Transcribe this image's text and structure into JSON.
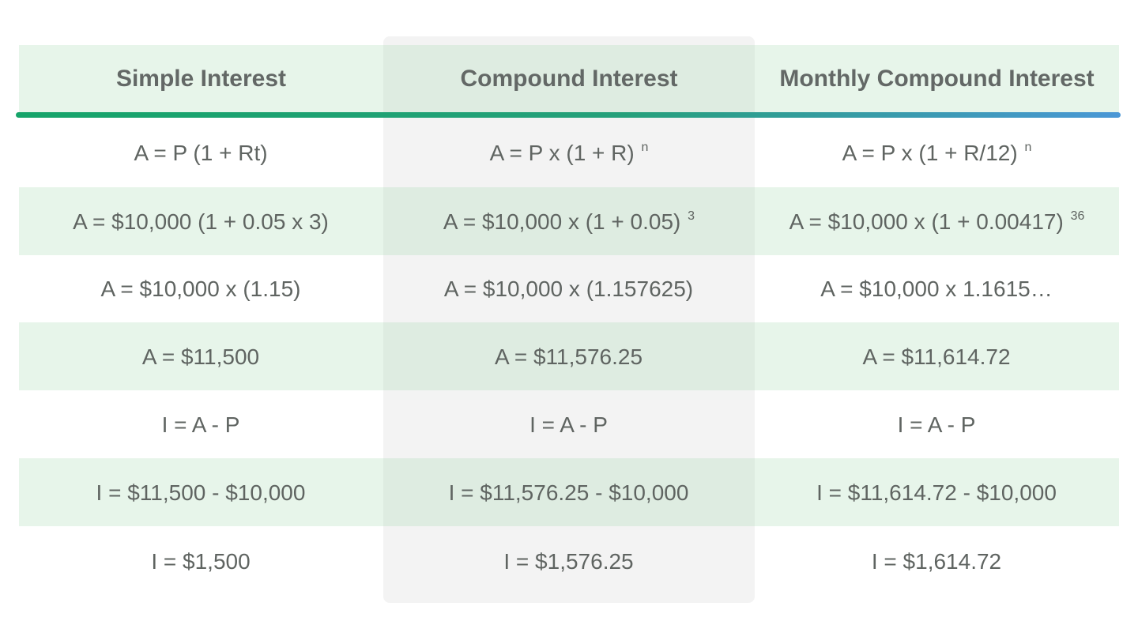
{
  "headers": {
    "simple": "Simple Interest",
    "compound": "Compound Interest",
    "monthly": "Monthly Compound Interest"
  },
  "rows": [
    {
      "simple": {
        "base": "A = P (1 + Rt)",
        "exp": ""
      },
      "compound": {
        "base": "A = P x (1 + R)",
        "exp": "n"
      },
      "monthly": {
        "base": "A = P x (1 + R/12)",
        "exp": "n"
      }
    },
    {
      "simple": {
        "base": "A = $10,000 (1 + 0.05 x 3)",
        "exp": ""
      },
      "compound": {
        "base": "A = $10,000 x (1 + 0.05)",
        "exp": "3"
      },
      "monthly": {
        "base": "A = $10,000 x (1 + 0.00417)",
        "exp": "36"
      }
    },
    {
      "simple": {
        "base": "A = $10,000 x (1.15)",
        "exp": ""
      },
      "compound": {
        "base": "A = $10,000 x (1.157625)",
        "exp": ""
      },
      "monthly": {
        "base": "A = $10,000 x 1.1615…",
        "exp": ""
      }
    },
    {
      "simple": {
        "base": "A = $11,500",
        "exp": ""
      },
      "compound": {
        "base": "A = $11,576.25",
        "exp": ""
      },
      "monthly": {
        "base": "A = $11,614.72",
        "exp": ""
      }
    },
    {
      "simple": {
        "base": "I = A - P",
        "exp": ""
      },
      "compound": {
        "base": "I = A - P",
        "exp": ""
      },
      "monthly": {
        "base": "I = A - P",
        "exp": ""
      }
    },
    {
      "simple": {
        "base": "I = $11,500 - $10,000",
        "exp": ""
      },
      "compound": {
        "base": "I = $11,576.25 - $10,000",
        "exp": ""
      },
      "monthly": {
        "base": "I = $11,614.72 - $10,000",
        "exp": ""
      }
    },
    {
      "simple": {
        "base": "I = $1,500",
        "exp": ""
      },
      "compound": {
        "base": "I = $1,576.25",
        "exp": ""
      },
      "monthly": {
        "base": "I = $1,614.72",
        "exp": ""
      }
    }
  ],
  "colors": {
    "header_text": "#636866",
    "body_text": "#5f6461",
    "row_tint": "#e7f3ea",
    "center_column_shade": "#f3f3f3",
    "accent_start": "#16a46a",
    "accent_end": "#4a97d6"
  }
}
